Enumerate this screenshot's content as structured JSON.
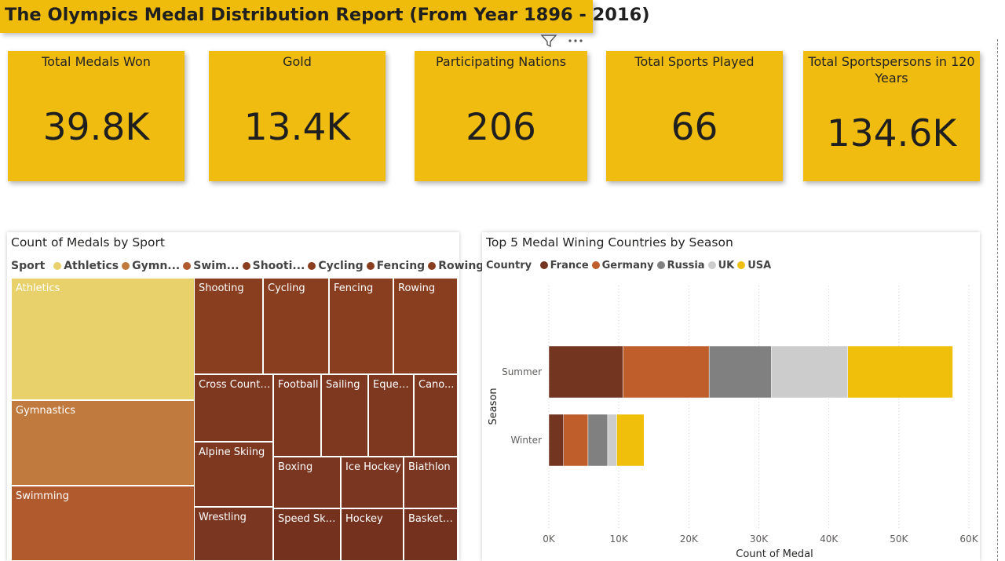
{
  "header": {
    "title": "The Olympics Medal Distribution Report (From Year 1896 - 2016)"
  },
  "kpis": [
    {
      "label": "Total Medals Won",
      "value": "39.8K"
    },
    {
      "label": "Gold",
      "value": "13.4K"
    },
    {
      "label": "Participating Nations",
      "value": "206"
    },
    {
      "label": "Total Sports Played",
      "value": "66"
    },
    {
      "label": "Total Sportspersons in 120 Years",
      "value": "134.6K"
    }
  ],
  "treemap": {
    "title": "Count of Medals by Sport",
    "legend_title": "Sport",
    "legend_items": [
      {
        "label": "Athletics",
        "color": "#e8d06a"
      },
      {
        "label": "Gymn...",
        "color": "#c07a3e"
      },
      {
        "label": "Swim...",
        "color": "#b05a2e"
      },
      {
        "label": "Shooti...",
        "color": "#8a3e20"
      },
      {
        "label": "Cycling",
        "color": "#8a3e20"
      },
      {
        "label": "Fencing",
        "color": "#8a3e20"
      },
      {
        "label": "Rowing",
        "color": "#8a3e20"
      }
    ],
    "cells": [
      {
        "label": "Athletics",
        "color": "#e8d06a"
      },
      {
        "label": "Gymnastics",
        "color": "#c07a3e"
      },
      {
        "label": "Swimming",
        "color": "#b05a2e"
      },
      {
        "label": "Shooting",
        "color": "#8a3e20"
      },
      {
        "label": "Cycling",
        "color": "#8a3e20"
      },
      {
        "label": "Fencing",
        "color": "#8a3e20"
      },
      {
        "label": "Rowing",
        "color": "#8a3e20"
      },
      {
        "label": "Cross Countr...",
        "color": "#7e3820"
      },
      {
        "label": "Football",
        "color": "#7e3820"
      },
      {
        "label": "Sailing",
        "color": "#7e3820"
      },
      {
        "label": "Eques...",
        "color": "#7e3820"
      },
      {
        "label": "Cano...",
        "color": "#7e3820"
      },
      {
        "label": "Alpine Skiing",
        "color": "#7e3820"
      },
      {
        "label": "Boxing",
        "color": "#7a3620"
      },
      {
        "label": "Ice Hockey",
        "color": "#7a3620"
      },
      {
        "label": "Biathlon",
        "color": "#7a3620"
      },
      {
        "label": "Wrestling",
        "color": "#7a3620"
      },
      {
        "label": "Speed Ska...",
        "color": "#74321e"
      },
      {
        "label": "Hockey",
        "color": "#74321e"
      },
      {
        "label": "Basketb...",
        "color": "#74321e"
      }
    ]
  },
  "chart_data": {
    "type": "bar",
    "orientation": "horizontal",
    "stacked": true,
    "title": "Top 5 Medal Wining Countries by Season",
    "legend_title": "Country",
    "legend_position": "top-left",
    "categories": [
      "Summer",
      "Winter"
    ],
    "series": [
      {
        "name": "France",
        "color": "#733420",
        "values": [
          10600,
          2100
        ]
      },
      {
        "name": "Germany",
        "color": "#bf5e2a",
        "values": [
          12300,
          3500
        ]
      },
      {
        "name": "Russia",
        "color": "#808080",
        "values": [
          8900,
          2800
        ]
      },
      {
        "name": "UK",
        "color": "#cccccc",
        "values": [
          10900,
          1300
        ]
      },
      {
        "name": "USA",
        "color": "#f0bf0c",
        "values": [
          15000,
          3900
        ]
      }
    ],
    "xlabel": "Count of Medal",
    "ylabel": "Season",
    "xlim": [
      0,
      60000
    ],
    "x_ticks": [
      0,
      10000,
      20000,
      30000,
      40000,
      50000,
      60000
    ],
    "x_tick_labels": [
      "0K",
      "10K",
      "20K",
      "30K",
      "40K",
      "50K",
      "60K"
    ],
    "grid": true
  }
}
